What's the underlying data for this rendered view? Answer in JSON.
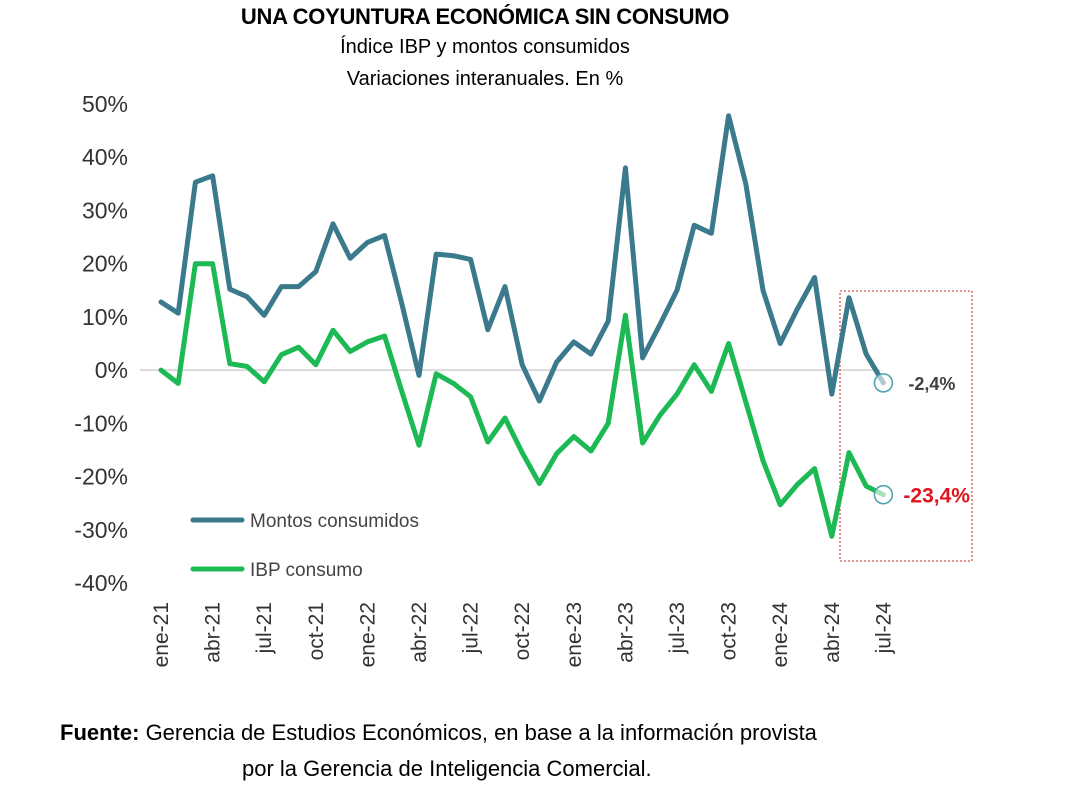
{
  "title": "UNA COYUNTURA ECONÓMICA SIN CONSUMO",
  "subtitle_1": "Índice IBP y montos consumidos",
  "subtitle_2": "Variaciones interanuales. En %",
  "source_label": "Fuente:",
  "source_text_1": " Gerencia de Estudios Económicos, en base a la información provista",
  "source_text_2": "por la Gerencia de Inteligencia Comercial.",
  "chart_data": {
    "type": "line",
    "ylim": [
      -40,
      50
    ],
    "yticks": [
      "50%",
      "40%",
      "30%",
      "20%",
      "10%",
      "0%",
      "-10%",
      "-20%",
      "-30%",
      "-40%"
    ],
    "ytick_values": [
      50,
      40,
      30,
      20,
      10,
      0,
      -10,
      -20,
      -30,
      -40
    ],
    "x": [
      "ene-21",
      "feb-21",
      "mar-21",
      "abr-21",
      "may-21",
      "jun-21",
      "jul-21",
      "ago-21",
      "sep-21",
      "oct-21",
      "nov-21",
      "dic-21",
      "ene-22",
      "feb-22",
      "mar-22",
      "abr-22",
      "may-22",
      "jun-22",
      "jul-22",
      "ago-22",
      "sep-22",
      "oct-22",
      "nov-22",
      "dic-22",
      "ene-23",
      "feb-23",
      "mar-23",
      "abr-23",
      "may-23",
      "jun-23",
      "jul-23",
      "ago-23",
      "sep-23",
      "oct-23",
      "nov-23",
      "dic-23",
      "ene-24",
      "feb-24",
      "mar-24",
      "abr-24",
      "may-24",
      "jun-24",
      "jul-24"
    ],
    "xtick_labels": [
      "ene-21",
      "abr-21",
      "jul-21",
      "oct-21",
      "ene-22",
      "abr-22",
      "jul-22",
      "oct-22",
      "ene-23",
      "abr-23",
      "jul-23",
      "oct-23",
      "ene-24",
      "abr-24",
      "jul-24"
    ],
    "series": [
      {
        "name": "Montos consumidos",
        "color": "#3B7A8C",
        "values": [
          12.8,
          10.7,
          35.3,
          36.5,
          15.2,
          13.8,
          10.3,
          15.7,
          15.7,
          18.5,
          27.5,
          21,
          24,
          25.3,
          12.5,
          -1,
          21.8,
          21.5,
          20.8,
          7.6,
          15.7,
          1,
          -5.8,
          1.5,
          5.3,
          3,
          9.2,
          38,
          2.3,
          8.5,
          15,
          27.2,
          25.7,
          47.8,
          35,
          15,
          5,
          11.5,
          17.4,
          -4.5,
          13.6,
          3,
          -2.4
        ]
      },
      {
        "name": "IBP consumo",
        "color": "#1DB954",
        "values": [
          0,
          -2.5,
          20,
          20,
          1.2,
          0.7,
          -2.2,
          2.9,
          4.3,
          1,
          7.5,
          3.5,
          5.3,
          6.4,
          -4,
          -14.1,
          -0.7,
          -2.5,
          -5,
          -13.5,
          -9,
          -15.5,
          -21.3,
          -15.7,
          -12.5,
          -15.2,
          -10,
          10.3,
          -13.7,
          -8.5,
          -4.5,
          1,
          -4,
          5,
          -6,
          -17,
          -25.3,
          -21.5,
          -18.5,
          -31.2,
          -15.5,
          -21.8,
          -23.4
        ]
      }
    ],
    "annotations": [
      {
        "series": 0,
        "text": "-2,4%",
        "color": "#404040"
      },
      {
        "series": 1,
        "text": "-23,4%",
        "color": "#E0141E"
      }
    ],
    "highlight_box_color": "#D9534F",
    "grid": false,
    "legend_position": "bottom-left"
  }
}
